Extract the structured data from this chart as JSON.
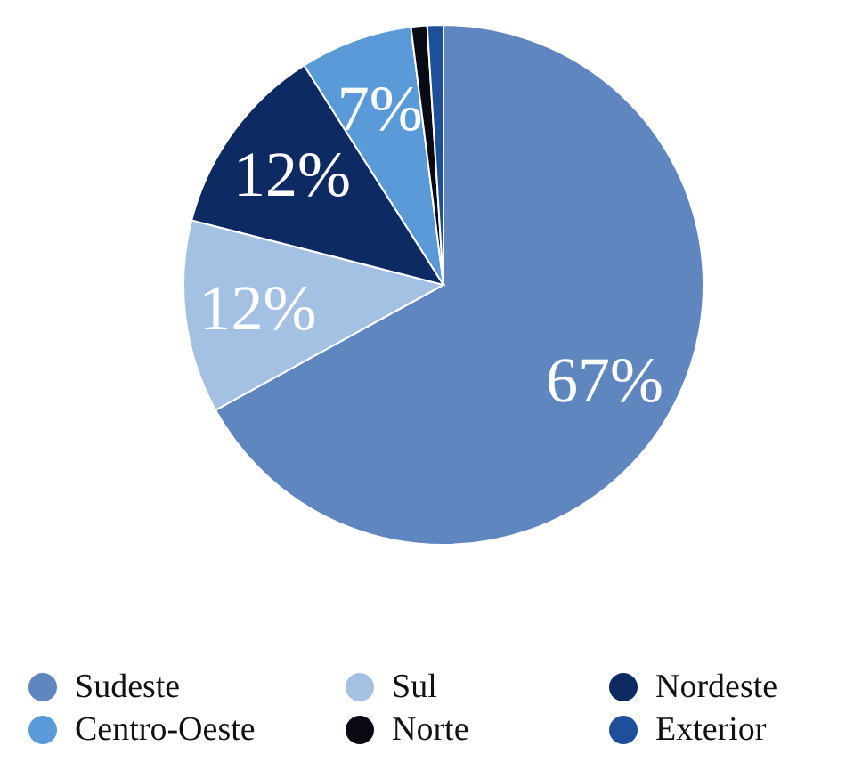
{
  "chart_data": {
    "type": "pie",
    "categories": [
      "Sudeste",
      "Sul",
      "Nordeste",
      "Centro-Oeste",
      "Norte",
      "Exterior"
    ],
    "values": [
      67,
      12,
      12,
      7,
      1,
      1
    ],
    "colors": [
      "#5f86bf",
      "#a4c1e4",
      "#0d2a63",
      "#5b9ad8",
      "#0a0a14",
      "#1f4f9a"
    ],
    "value_labels": [
      "67%",
      "12%",
      "12%",
      "7%",
      null,
      null
    ],
    "legend": "bottom"
  }
}
